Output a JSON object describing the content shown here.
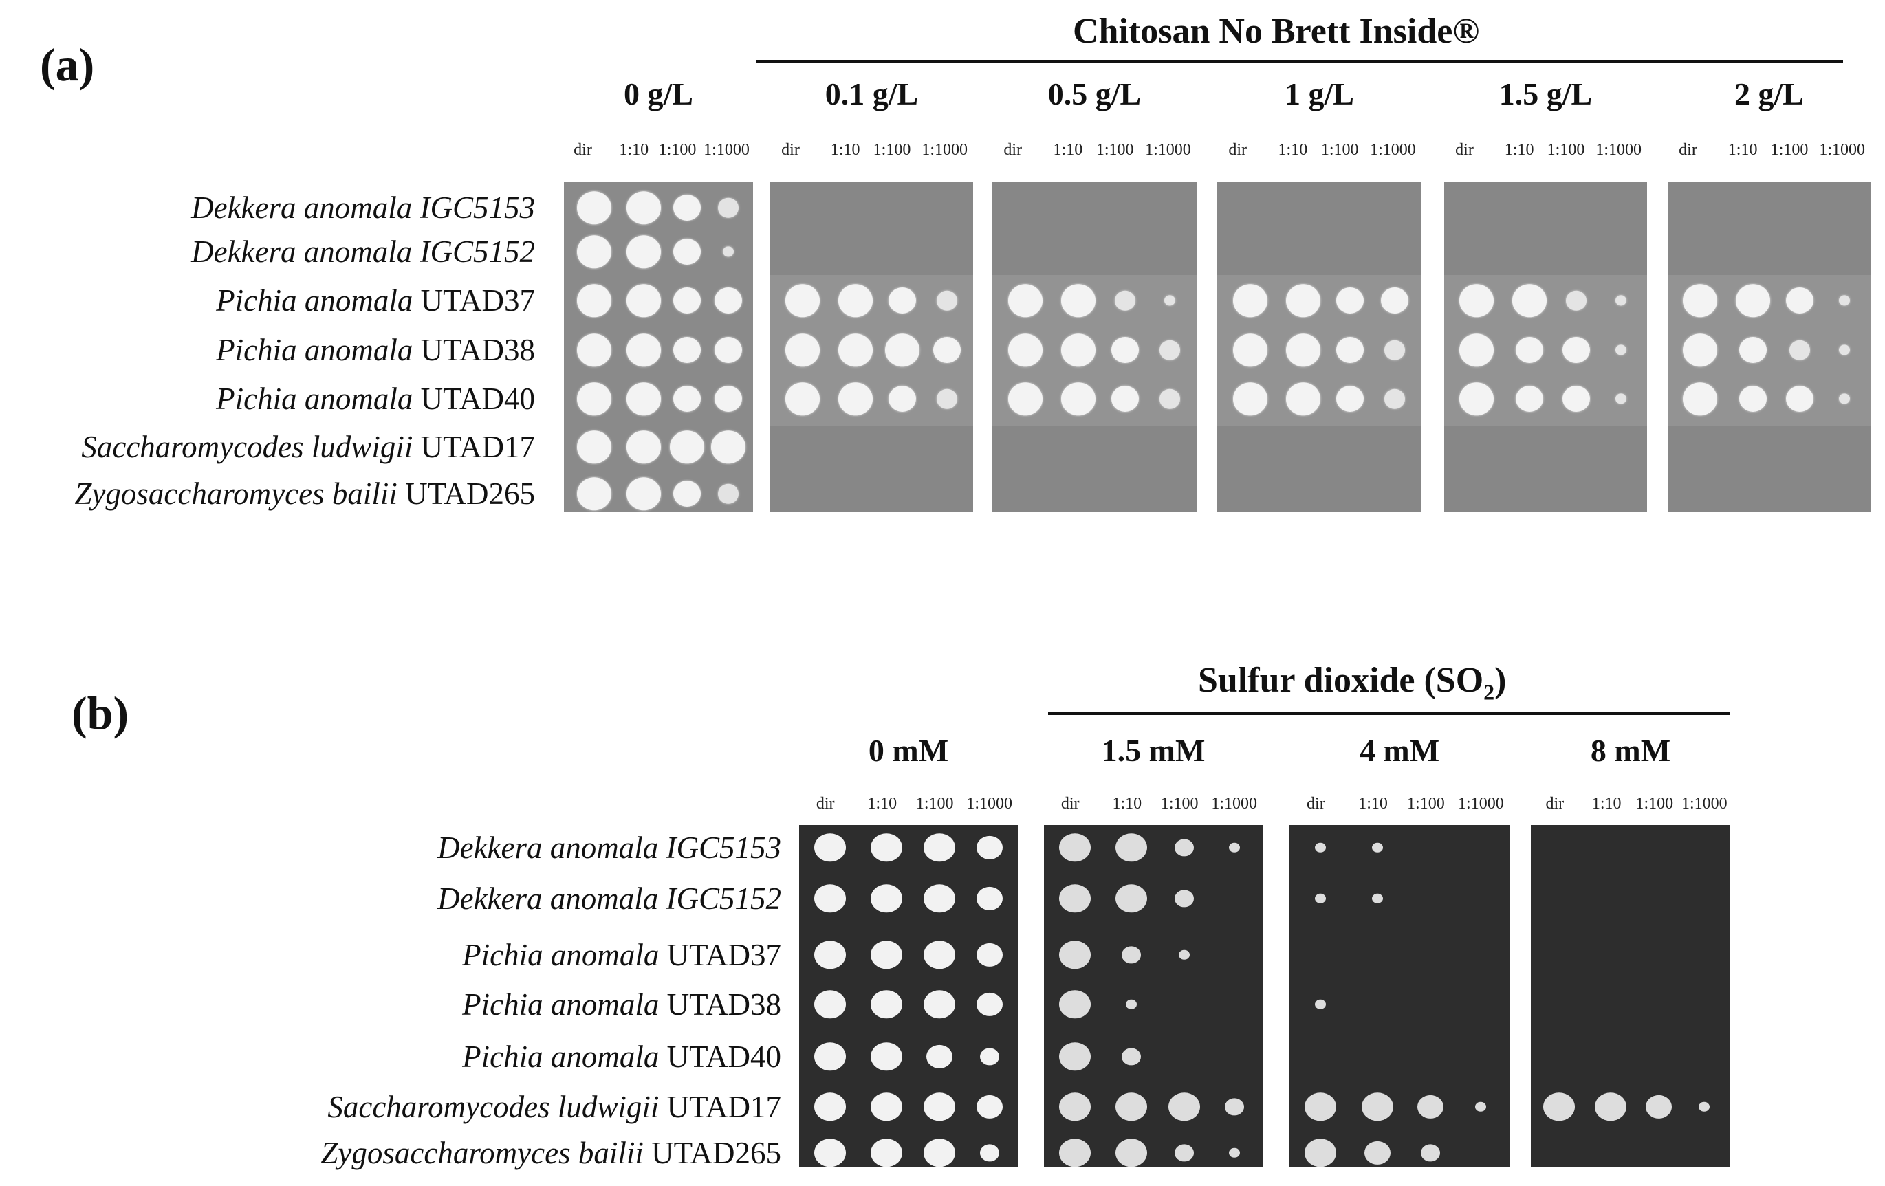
{
  "panel_a": {
    "label": "(a)",
    "group_title": "Chitosan No Brett Inside®",
    "concentrations": [
      "0 g/L",
      "0.1 g/L",
      "0.5 g/L",
      "1 g/L",
      "1.5 g/L",
      "2 g/L"
    ],
    "dilutions": [
      "dir",
      "1:10",
      "1:100",
      "1:1000"
    ]
  },
  "panel_b": {
    "label": "(b)",
    "group_title_main": "Sulfur dioxide (SO",
    "group_title_sub": "2",
    "group_title_end": ")",
    "concentrations": [
      "0 mM",
      "1.5 mM",
      "4 mM",
      "8 mM"
    ],
    "dilutions": [
      "dir",
      "1:10",
      "1:100",
      "1:1000"
    ]
  },
  "strains": [
    {
      "genus_species": "Dekkera anomala IGC5153",
      "code": ""
    },
    {
      "genus_species": "Dekkera anomala IGC5152",
      "code": ""
    },
    {
      "genus_species": "Pichia anomala",
      "code": "UTAD37"
    },
    {
      "genus_species": "Pichia anomala",
      "code": "UTAD38"
    },
    {
      "genus_species": "Pichia anomala",
      "code": "UTAD40"
    },
    {
      "genus_species": "Saccharomycodes ludwigii",
      "code": "UTAD17"
    },
    {
      "genus_species": "Zygosaccharomyces bailii",
      "code": "UTAD265"
    }
  ],
  "growth_panel_a": [
    [
      [
        4,
        4,
        3,
        2
      ],
      [
        0,
        0,
        0,
        0
      ],
      [
        0,
        0,
        0,
        0
      ],
      [
        0,
        0,
        0,
        0
      ],
      [
        0,
        0,
        0,
        0
      ],
      [
        0,
        0,
        0,
        0
      ]
    ],
    [
      [
        4,
        4,
        3,
        1
      ],
      [
        0,
        0,
        0,
        0
      ],
      [
        0,
        0,
        0,
        0
      ],
      [
        0,
        0,
        0,
        0
      ],
      [
        0,
        0,
        0,
        0
      ],
      [
        0,
        0,
        0,
        0
      ]
    ],
    [
      [
        4,
        4,
        3,
        3
      ],
      [
        4,
        4,
        3,
        2
      ],
      [
        4,
        4,
        2,
        1
      ],
      [
        4,
        4,
        3,
        3
      ],
      [
        4,
        4,
        2,
        1
      ],
      [
        4,
        4,
        3,
        1
      ]
    ],
    [
      [
        4,
        4,
        3,
        3
      ],
      [
        4,
        4,
        4,
        3
      ],
      [
        4,
        4,
        3,
        2
      ],
      [
        4,
        4,
        3,
        2
      ],
      [
        4,
        3,
        3,
        1
      ],
      [
        4,
        3,
        2,
        1
      ]
    ],
    [
      [
        4,
        4,
        3,
        3
      ],
      [
        4,
        4,
        3,
        2
      ],
      [
        4,
        4,
        3,
        2
      ],
      [
        4,
        4,
        3,
        2
      ],
      [
        4,
        3,
        3,
        1
      ],
      [
        4,
        3,
        3,
        1
      ]
    ],
    [
      [
        4,
        4,
        4,
        4
      ],
      [
        0,
        0,
        0,
        0
      ],
      [
        0,
        0,
        0,
        0
      ],
      [
        0,
        0,
        0,
        0
      ],
      [
        0,
        0,
        0,
        0
      ],
      [
        0,
        0,
        0,
        0
      ]
    ],
    [
      [
        4,
        4,
        3,
        2
      ],
      [
        0,
        0,
        0,
        0
      ],
      [
        0,
        0,
        0,
        0
      ],
      [
        0,
        0,
        0,
        0
      ],
      [
        0,
        0,
        0,
        0
      ],
      [
        0,
        0,
        0,
        0
      ]
    ]
  ],
  "growth_panel_b": [
    [
      [
        4,
        4,
        4,
        3
      ],
      [
        4,
        4,
        2,
        1
      ],
      [
        1,
        1,
        0,
        0
      ],
      [
        0,
        0,
        0,
        0
      ]
    ],
    [
      [
        4,
        4,
        4,
        3
      ],
      [
        4,
        4,
        2,
        0
      ],
      [
        1,
        1,
        0,
        0
      ],
      [
        0,
        0,
        0,
        0
      ]
    ],
    [
      [
        4,
        4,
        4,
        3
      ],
      [
        4,
        2,
        1,
        0
      ],
      [
        0,
        0,
        0,
        0
      ],
      [
        0,
        0,
        0,
        0
      ]
    ],
    [
      [
        4,
        4,
        4,
        3
      ],
      [
        4,
        1,
        0,
        0
      ],
      [
        1,
        0,
        0,
        0
      ],
      [
        0,
        0,
        0,
        0
      ]
    ],
    [
      [
        4,
        4,
        3,
        2
      ],
      [
        4,
        2,
        0,
        0
      ],
      [
        0,
        0,
        0,
        0
      ],
      [
        0,
        0,
        0,
        0
      ]
    ],
    [
      [
        4,
        4,
        4,
        3
      ],
      [
        4,
        4,
        4,
        2
      ],
      [
        4,
        4,
        3,
        1
      ],
      [
        4,
        4,
        3,
        1
      ]
    ],
    [
      [
        4,
        4,
        4,
        2
      ],
      [
        4,
        4,
        2,
        1
      ],
      [
        4,
        3,
        2,
        0
      ],
      [
        0,
        0,
        0,
        0
      ]
    ]
  ]
}
